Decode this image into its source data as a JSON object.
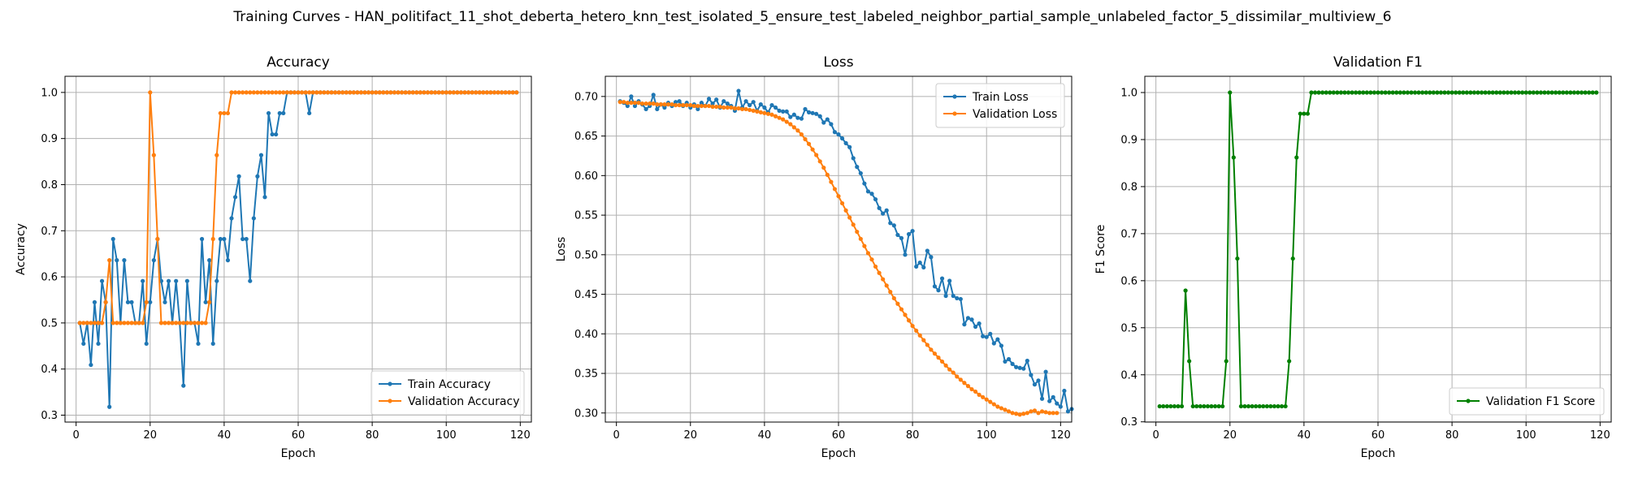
{
  "figure": {
    "suptitle": "Training Curves - HAN_politifact_11_shot_deberta_hetero_knn_test_isolated_5_ensure_test_labeled_neighbor_partial_sample_unlabeled_factor_5_dissimilar_multiview_6"
  },
  "colors": {
    "blue": "#1f77b4",
    "orange": "#ff7f0e",
    "green": "#008000"
  },
  "chart_data": [
    {
      "id": "accuracy",
      "type": "line",
      "title": "Accuracy",
      "xlabel": "Epoch",
      "ylabel": "Accuracy",
      "xlim": [
        -3,
        123
      ],
      "ylim": [
        0.285,
        1.035
      ],
      "xticks": [
        0,
        20,
        40,
        60,
        80,
        100,
        120
      ],
      "yticks": [
        0.3,
        0.4,
        0.5,
        0.6,
        0.7,
        0.8,
        0.9,
        1.0
      ],
      "ytick_labels": [
        "0.3",
        "0.4",
        "0.5",
        "0.6",
        "0.7",
        "0.8",
        "0.9",
        "1.0"
      ],
      "grid": true,
      "legend": "lower-right",
      "series": [
        {
          "name": "Train Accuracy",
          "color": "#1f77b4",
          "x_start": 1,
          "values": [
            0.5,
            0.455,
            0.5,
            0.409,
            0.545,
            0.455,
            0.591,
            0.545,
            0.318,
            0.682,
            0.636,
            0.5,
            0.636,
            0.545,
            0.545,
            0.5,
            0.5,
            0.591,
            0.455,
            0.545,
            0.636,
            0.682,
            0.591,
            0.545,
            0.591,
            0.5,
            0.591,
            0.5,
            0.364,
            0.591,
            0.5,
            0.5,
            0.455,
            0.682,
            0.545,
            0.636,
            0.455,
            0.591,
            0.682,
            0.682,
            0.636,
            0.727,
            0.773,
            0.818,
            0.682,
            0.682,
            0.591,
            0.727,
            0.818,
            0.864,
            0.773,
            0.955,
            0.909,
            0.909,
            0.955,
            0.955,
            1.0,
            1.0,
            1.0,
            1.0,
            1.0,
            1.0,
            0.955,
            1.0,
            1.0,
            1.0,
            1.0,
            1.0,
            1.0,
            1.0,
            1.0,
            1.0,
            1.0,
            1.0,
            1.0,
            1.0,
            1.0,
            1.0,
            1.0,
            1.0,
            1.0,
            1.0,
            1.0,
            1.0,
            1.0,
            1.0,
            1.0,
            1.0,
            1.0,
            1.0,
            1.0,
            1.0,
            1.0,
            1.0,
            1.0,
            1.0,
            1.0,
            1.0,
            1.0,
            1.0,
            1.0,
            1.0,
            1.0,
            1.0,
            1.0,
            1.0,
            1.0,
            1.0,
            1.0,
            1.0,
            1.0,
            1.0,
            1.0,
            1.0,
            1.0,
            1.0,
            1.0,
            1.0,
            1.0
          ]
        },
        {
          "name": "Validation Accuracy",
          "color": "#ff7f0e",
          "x_start": 1,
          "values": [
            0.5,
            0.5,
            0.5,
            0.5,
            0.5,
            0.5,
            0.5,
            0.545,
            0.636,
            0.5,
            0.5,
            0.5,
            0.5,
            0.5,
            0.5,
            0.5,
            0.5,
            0.5,
            0.545,
            1.0,
            0.864,
            0.682,
            0.5,
            0.5,
            0.5,
            0.5,
            0.5,
            0.5,
            0.5,
            0.5,
            0.5,
            0.5,
            0.5,
            0.5,
            0.5,
            0.545,
            0.682,
            0.864,
            0.955,
            0.955,
            0.955,
            1.0,
            1.0,
            1.0,
            1.0,
            1.0,
            1.0,
            1.0,
            1.0,
            1.0,
            1.0,
            1.0,
            1.0,
            1.0,
            1.0,
            1.0,
            1.0,
            1.0,
            1.0,
            1.0,
            1.0,
            1.0,
            1.0,
            1.0,
            1.0,
            1.0,
            1.0,
            1.0,
            1.0,
            1.0,
            1.0,
            1.0,
            1.0,
            1.0,
            1.0,
            1.0,
            1.0,
            1.0,
            1.0,
            1.0,
            1.0,
            1.0,
            1.0,
            1.0,
            1.0,
            1.0,
            1.0,
            1.0,
            1.0,
            1.0,
            1.0,
            1.0,
            1.0,
            1.0,
            1.0,
            1.0,
            1.0,
            1.0,
            1.0,
            1.0,
            1.0,
            1.0,
            1.0,
            1.0,
            1.0,
            1.0,
            1.0,
            1.0,
            1.0,
            1.0,
            1.0,
            1.0,
            1.0,
            1.0,
            1.0,
            1.0,
            1.0,
            1.0,
            1.0
          ]
        }
      ]
    },
    {
      "id": "loss",
      "type": "line",
      "title": "Loss",
      "xlabel": "Epoch",
      "ylabel": "Loss",
      "xlim": [
        -3,
        123
      ],
      "ylim": [
        0.2885,
        0.7255
      ],
      "xticks": [
        0,
        20,
        40,
        60,
        80,
        100,
        120
      ],
      "yticks": [
        0.3,
        0.35,
        0.4,
        0.45,
        0.5,
        0.55,
        0.6,
        0.65,
        0.7
      ],
      "ytick_labels": [
        "0.30",
        "0.35",
        "0.40",
        "0.45",
        "0.50",
        "0.55",
        "0.60",
        "0.65",
        "0.70"
      ],
      "grid": true,
      "legend": "upper-right",
      "series": [
        {
          "name": "Train Loss",
          "color": "#1f77b4",
          "x_start": 1,
          "values": [
            0.694,
            0.692,
            0.688,
            0.7,
            0.688,
            0.694,
            0.69,
            0.684,
            0.688,
            0.702,
            0.684,
            0.69,
            0.686,
            0.692,
            0.688,
            0.693,
            0.694,
            0.688,
            0.692,
            0.686,
            0.69,
            0.684,
            0.692,
            0.688,
            0.697,
            0.691,
            0.696,
            0.686,
            0.694,
            0.691,
            0.688,
            0.682,
            0.707,
            0.686,
            0.694,
            0.689,
            0.693,
            0.682,
            0.69,
            0.686,
            0.68,
            0.689,
            0.686,
            0.682,
            0.681,
            0.681,
            0.674,
            0.677,
            0.673,
            0.672,
            0.684,
            0.68,
            0.679,
            0.678,
            0.675,
            0.667,
            0.671,
            0.665,
            0.655,
            0.652,
            0.647,
            0.641,
            0.636,
            0.622,
            0.611,
            0.603,
            0.59,
            0.58,
            0.577,
            0.57,
            0.559,
            0.552,
            0.556,
            0.54,
            0.537,
            0.525,
            0.521,
            0.5,
            0.526,
            0.53,
            0.485,
            0.49,
            0.484,
            0.505,
            0.497,
            0.46,
            0.455,
            0.47,
            0.448,
            0.467,
            0.448,
            0.445,
            0.444,
            0.412,
            0.42,
            0.418,
            0.409,
            0.413,
            0.397,
            0.396,
            0.4,
            0.388,
            0.393,
            0.385,
            0.365,
            0.368,
            0.362,
            0.358,
            0.357,
            0.356,
            0.366,
            0.348,
            0.336,
            0.341,
            0.318,
            0.352,
            0.315,
            0.32,
            0.312,
            0.308,
            0.328,
            0.302,
            0.305
          ]
        },
        {
          "name": "Validation Loss",
          "color": "#ff7f0e",
          "x_start": 1,
          "values": [
            0.693,
            0.693,
            0.692,
            0.692,
            0.692,
            0.692,
            0.691,
            0.691,
            0.691,
            0.691,
            0.69,
            0.69,
            0.69,
            0.69,
            0.69,
            0.689,
            0.689,
            0.689,
            0.689,
            0.689,
            0.688,
            0.688,
            0.688,
            0.688,
            0.688,
            0.687,
            0.687,
            0.687,
            0.686,
            0.686,
            0.686,
            0.685,
            0.685,
            0.684,
            0.684,
            0.683,
            0.682,
            0.681,
            0.68,
            0.679,
            0.678,
            0.677,
            0.675,
            0.673,
            0.671,
            0.668,
            0.665,
            0.661,
            0.657,
            0.652,
            0.646,
            0.64,
            0.633,
            0.626,
            0.618,
            0.61,
            0.601,
            0.592,
            0.583,
            0.574,
            0.565,
            0.556,
            0.547,
            0.538,
            0.529,
            0.52,
            0.511,
            0.502,
            0.494,
            0.485,
            0.477,
            0.469,
            0.461,
            0.453,
            0.445,
            0.438,
            0.431,
            0.424,
            0.417,
            0.41,
            0.404,
            0.398,
            0.392,
            0.386,
            0.38,
            0.375,
            0.37,
            0.365,
            0.36,
            0.355,
            0.351,
            0.346,
            0.342,
            0.338,
            0.334,
            0.33,
            0.327,
            0.323,
            0.32,
            0.317,
            0.314,
            0.311,
            0.308,
            0.306,
            0.304,
            0.302,
            0.3,
            0.299,
            0.298,
            0.299,
            0.3,
            0.302,
            0.303,
            0.3,
            0.302,
            0.301,
            0.3,
            0.3,
            0.3
          ]
        }
      ]
    },
    {
      "id": "validation-f1",
      "type": "line",
      "title": "Validation F1",
      "xlabel": "Epoch",
      "ylabel": "F1 Score",
      "xlim": [
        -3,
        123
      ],
      "ylim": [
        0.2995,
        1.0345
      ],
      "xticks": [
        0,
        20,
        40,
        60,
        80,
        100,
        120
      ],
      "yticks": [
        0.3,
        0.4,
        0.5,
        0.6,
        0.7,
        0.8,
        0.9,
        1.0
      ],
      "ytick_labels": [
        "0.3",
        "0.4",
        "0.5",
        "0.6",
        "0.7",
        "0.8",
        "0.9",
        "1.0"
      ],
      "grid": true,
      "legend": "lower-right",
      "series": [
        {
          "name": "Validation F1 Score",
          "color": "#008000",
          "x_start": 1,
          "values": [
            0.333,
            0.333,
            0.333,
            0.333,
            0.333,
            0.333,
            0.333,
            0.579,
            0.429,
            0.333,
            0.333,
            0.333,
            0.333,
            0.333,
            0.333,
            0.333,
            0.333,
            0.333,
            0.429,
            1.0,
            0.862,
            0.647,
            0.333,
            0.333,
            0.333,
            0.333,
            0.333,
            0.333,
            0.333,
            0.333,
            0.333,
            0.333,
            0.333,
            0.333,
            0.333,
            0.429,
            0.647,
            0.862,
            0.955,
            0.955,
            0.955,
            1.0,
            1.0,
            1.0,
            1.0,
            1.0,
            1.0,
            1.0,
            1.0,
            1.0,
            1.0,
            1.0,
            1.0,
            1.0,
            1.0,
            1.0,
            1.0,
            1.0,
            1.0,
            1.0,
            1.0,
            1.0,
            1.0,
            1.0,
            1.0,
            1.0,
            1.0,
            1.0,
            1.0,
            1.0,
            1.0,
            1.0,
            1.0,
            1.0,
            1.0,
            1.0,
            1.0,
            1.0,
            1.0,
            1.0,
            1.0,
            1.0,
            1.0,
            1.0,
            1.0,
            1.0,
            1.0,
            1.0,
            1.0,
            1.0,
            1.0,
            1.0,
            1.0,
            1.0,
            1.0,
            1.0,
            1.0,
            1.0,
            1.0,
            1.0,
            1.0,
            1.0,
            1.0,
            1.0,
            1.0,
            1.0,
            1.0,
            1.0,
            1.0,
            1.0,
            1.0,
            1.0,
            1.0,
            1.0,
            1.0,
            1.0,
            1.0,
            1.0,
            1.0
          ]
        }
      ]
    }
  ]
}
